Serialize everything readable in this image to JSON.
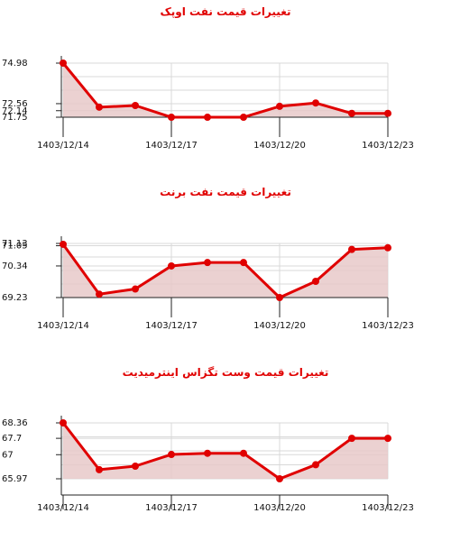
{
  "colors": {
    "line": "#e00000",
    "area": "#e8c9c9",
    "title": "#e00000",
    "grid": "#d8d8d8",
    "axis": "#222222"
  },
  "chart_data": [
    {
      "type": "area",
      "title": "تغییرات قیمت نفت اوپک",
      "x": [
        "1403/12/14",
        "1403/12/15",
        "1403/12/16",
        "1403/12/17",
        "1403/12/18",
        "1403/12/19",
        "1403/12/20",
        "1403/12/21",
        "1403/12/22",
        "1403/12/23"
      ],
      "y": [
        74.98,
        72.35,
        72.45,
        71.75,
        71.75,
        71.75,
        72.4,
        72.6,
        71.98,
        71.98
      ],
      "yticks": [
        "74.98",
        "72.56",
        "72.14",
        "71.75"
      ],
      "ytick_values": [
        74.98,
        72.56,
        72.14,
        71.75
      ],
      "xticks": [
        "1403/12/14",
        "1403/12/17",
        "1403/12/20",
        "1403/12/23"
      ],
      "ylim": [
        71.75,
        74.98
      ],
      "grid": true,
      "xlabel": "",
      "ylabel": ""
    },
    {
      "type": "area",
      "title": "تغییرات قیمت نفت برنت",
      "x": [
        "1403/12/14",
        "1403/12/15",
        "1403/12/16",
        "1403/12/17",
        "1403/12/18",
        "1403/12/19",
        "1403/12/20",
        "1403/12/21",
        "1403/12/22",
        "1403/12/23"
      ],
      "y": [
        71.1,
        69.35,
        69.53,
        70.34,
        70.46,
        70.46,
        69.23,
        69.8,
        70.92,
        70.98
      ],
      "yticks": [
        "71.13",
        "71.05",
        "70.34",
        "69.23"
      ],
      "ytick_values": [
        71.13,
        71.05,
        70.34,
        69.23
      ],
      "xticks": [
        "1403/12/14",
        "1403/12/17",
        "1403/12/20",
        "1403/12/23"
      ],
      "ylim": [
        69.23,
        71.13
      ],
      "grid": true,
      "xlabel": "",
      "ylabel": ""
    },
    {
      "type": "area",
      "title": "تغییرات قیمت وست تگزاس اینترمیدیت",
      "x": [
        "1403/12/14",
        "1403/12/15",
        "1403/12/16",
        "1403/12/17",
        "1403/12/18",
        "1403/12/19",
        "1403/12/20",
        "1403/12/21",
        "1403/12/22",
        "1403/12/23"
      ],
      "y": [
        68.36,
        66.36,
        66.51,
        67.01,
        67.06,
        67.06,
        65.97,
        66.57,
        67.7,
        67.7
      ],
      "yticks": [
        "68.36",
        "67.7",
        "67",
        "65.97"
      ],
      "ytick_values": [
        68.36,
        67.7,
        67.0,
        65.97
      ],
      "xticks": [
        "1403/12/14",
        "1403/12/17",
        "1403/12/20",
        "1403/12/23"
      ],
      "ylim": [
        65.97,
        68.36
      ],
      "grid": true,
      "xlabel": "",
      "ylabel": ""
    }
  ]
}
